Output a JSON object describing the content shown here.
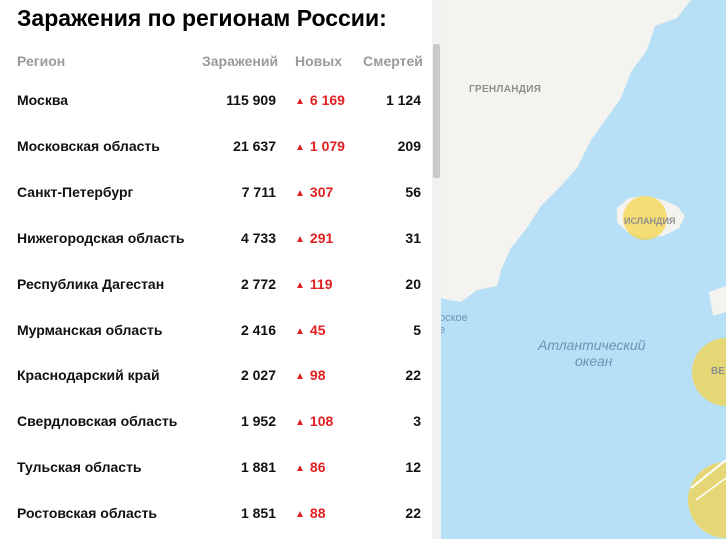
{
  "title": "Заражения по регионам России:",
  "columns": {
    "region": "Регион",
    "infected": "Заражений",
    "new": "Новых",
    "deaths": "Смертей"
  },
  "rows": [
    {
      "region": "Москва",
      "infected": "115 909",
      "new": "6 169",
      "deaths": "1 124"
    },
    {
      "region": "Московская область",
      "infected": "21 637",
      "new": "1 079",
      "deaths": "209"
    },
    {
      "region": "Санкт-Петербург",
      "infected": "7 711",
      "new": "307",
      "deaths": "56"
    },
    {
      "region": "Нижегородская область",
      "infected": "4 733",
      "new": "291",
      "deaths": "31"
    },
    {
      "region": "Республика Дагестан",
      "infected": "2 772",
      "new": "119",
      "deaths": "20"
    },
    {
      "region": "Мурманская область",
      "infected": "2 416",
      "new": "45",
      "deaths": "5"
    },
    {
      "region": "Краснодарский край",
      "infected": "2 027",
      "new": "98",
      "deaths": "22"
    },
    {
      "region": "Свердловская область",
      "infected": "1 952",
      "new": "108",
      "deaths": "3"
    },
    {
      "region": "Тульская область",
      "infected": "1 881",
      "new": "86",
      "deaths": "12"
    },
    {
      "region": "Ростовская область",
      "infected": "1 851",
      "new": "88",
      "deaths": "22"
    }
  ],
  "new_icon": "triangle-up-icon",
  "map": {
    "greenland": "ГРЕНЛАНДИЯ",
    "iceland": "ИСЛАНДИЯ",
    "ocean_line1": "Атлантический",
    "ocean_line2": "океан",
    "fragment_top": "оское",
    "fragment_bottom": "е",
    "right_fragment": "ВЕ"
  },
  "colors": {
    "accent_new": "#e02020",
    "sea": "#b7dff5",
    "land": "#f4f3ef",
    "hotspot": "#f5d44b"
  }
}
